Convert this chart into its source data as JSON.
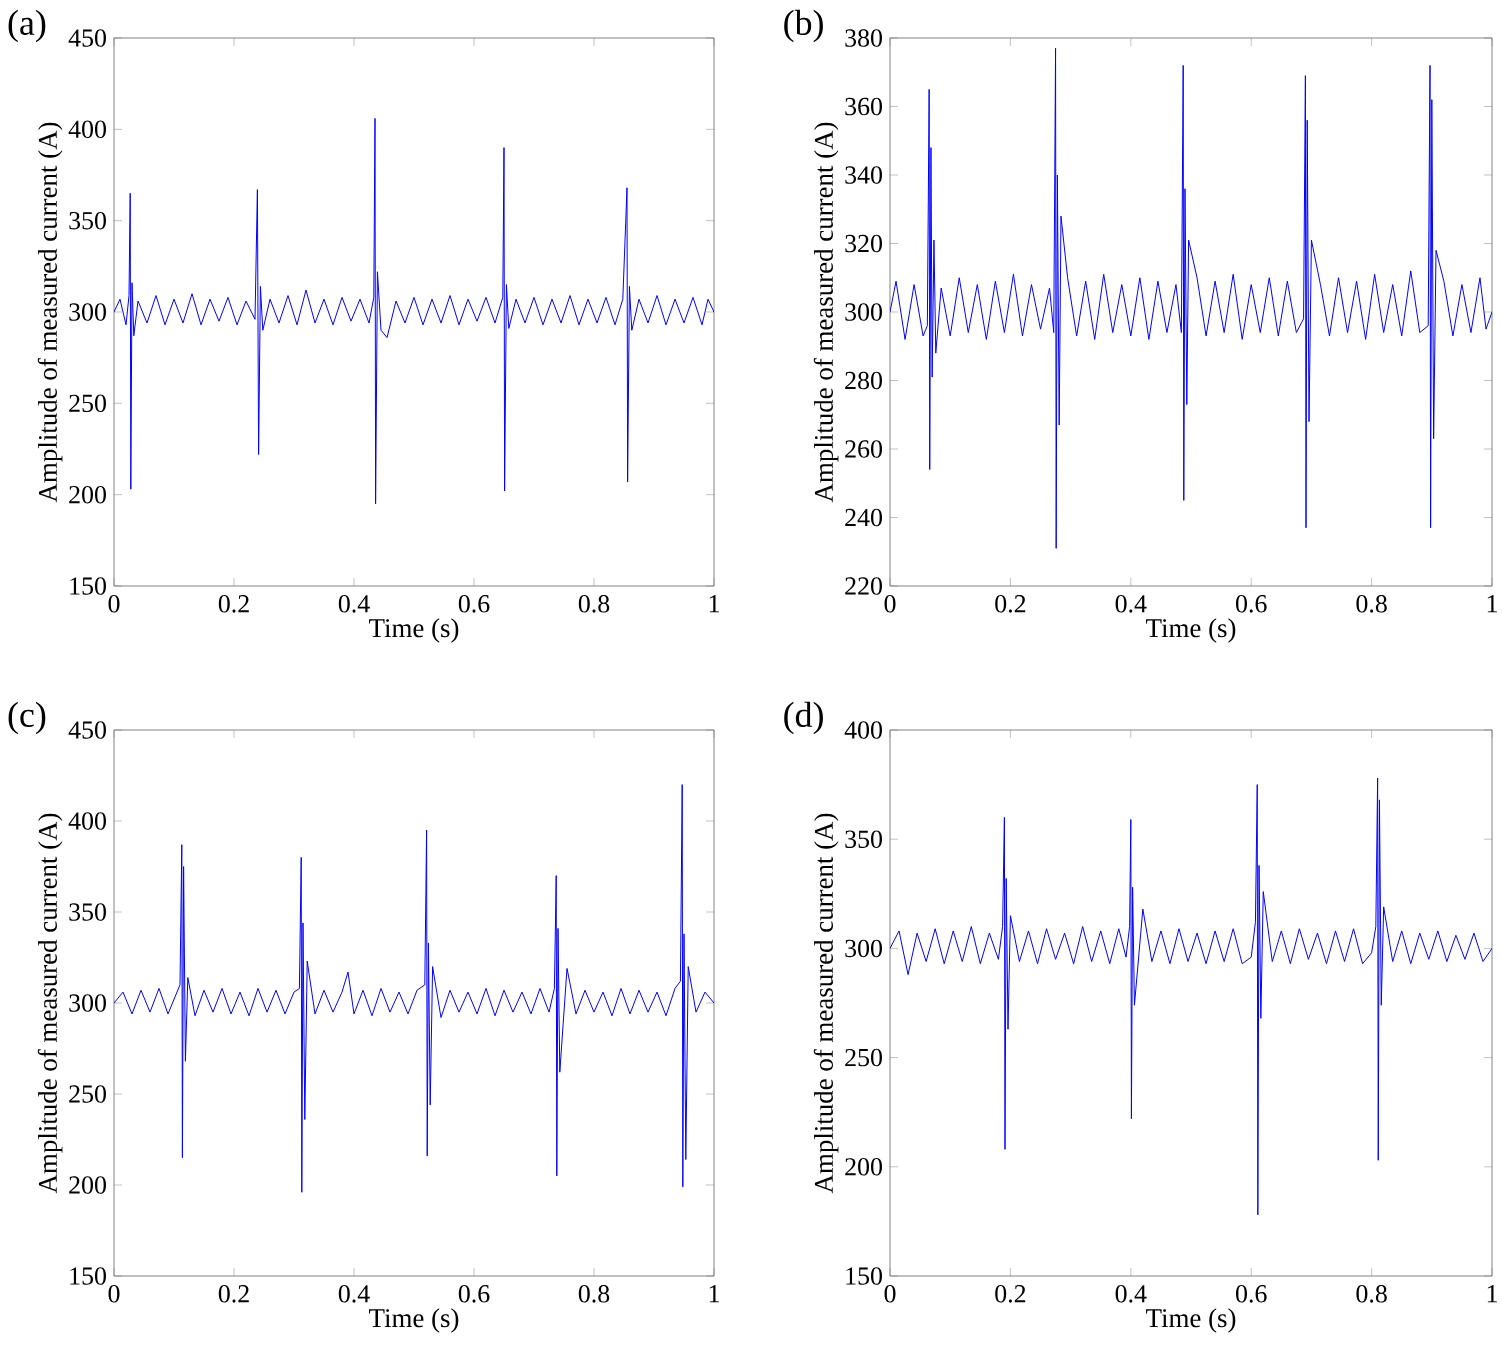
{
  "chart_data": [
    {
      "type": "line",
      "title": "(a)",
      "xlabel": "Time (s)",
      "ylabel": "Amplitude of measured current (A)",
      "marker": "none",
      "xlim": [
        0,
        1
      ],
      "ylim": [
        150,
        450
      ],
      "xticks": [
        0,
        0.2,
        0.4,
        0.6,
        0.8,
        1
      ],
      "yticks": [
        150,
        200,
        250,
        300,
        350,
        400,
        450
      ],
      "series": [
        {
          "color": "#0000ff",
          "x": [
            0,
            0.01,
            0.02,
            0.025,
            0.027,
            0.028,
            0.03,
            0.033,
            0.04,
            0.055,
            0.07,
            0.085,
            0.1,
            0.115,
            0.13,
            0.145,
            0.16,
            0.175,
            0.19,
            0.205,
            0.22,
            0.235,
            0.239,
            0.241,
            0.244,
            0.248,
            0.26,
            0.275,
            0.29,
            0.305,
            0.32,
            0.335,
            0.35,
            0.365,
            0.38,
            0.395,
            0.41,
            0.425,
            0.433,
            0.435,
            0.436,
            0.439,
            0.445,
            0.455,
            0.47,
            0.485,
            0.5,
            0.515,
            0.53,
            0.545,
            0.56,
            0.575,
            0.59,
            0.605,
            0.62,
            0.635,
            0.648,
            0.65,
            0.651,
            0.654,
            0.658,
            0.67,
            0.685,
            0.7,
            0.715,
            0.73,
            0.745,
            0.76,
            0.775,
            0.79,
            0.805,
            0.82,
            0.835,
            0.848,
            0.855,
            0.856,
            0.859,
            0.863,
            0.875,
            0.89,
            0.905,
            0.92,
            0.935,
            0.95,
            0.965,
            0.98,
            0.99,
            1.0
          ],
          "values": [
            300,
            307,
            293,
            309,
            365,
            203,
            316,
            287,
            306,
            294,
            309,
            293,
            307,
            294,
            310,
            293,
            307,
            295,
            308,
            293,
            306,
            296,
            367,
            222,
            314,
            290,
            307,
            294,
            309,
            293,
            312,
            294,
            307,
            293,
            308,
            295,
            307,
            294,
            308,
            406,
            195,
            322,
            290,
            286,
            306,
            294,
            308,
            293,
            307,
            294,
            309,
            293,
            307,
            295,
            308,
            294,
            308,
            390,
            202,
            315,
            291,
            307,
            294,
            308,
            293,
            307,
            294,
            309,
            293,
            307,
            294,
            308,
            293,
            307,
            368,
            207,
            314,
            290,
            307,
            294,
            309,
            293,
            307,
            294,
            308,
            293,
            307,
            300
          ]
        }
      ]
    },
    {
      "type": "line",
      "title": "(b)",
      "xlabel": "Time (s)",
      "ylabel": "Amplitude of measured current (A)",
      "marker": "none",
      "xlim": [
        0,
        1
      ],
      "ylim": [
        220,
        380
      ],
      "xticks": [
        0,
        0.2,
        0.4,
        0.6,
        0.8,
        1
      ],
      "yticks": [
        220,
        240,
        260,
        280,
        300,
        320,
        340,
        360,
        380
      ],
      "series": [
        {
          "color": "#0000ff",
          "x": [
            0,
            0.01,
            0.025,
            0.04,
            0.055,
            0.062,
            0.065,
            0.066,
            0.068,
            0.07,
            0.073,
            0.076,
            0.085,
            0.1,
            0.115,
            0.13,
            0.145,
            0.16,
            0.175,
            0.19,
            0.205,
            0.22,
            0.235,
            0.25,
            0.265,
            0.272,
            0.275,
            0.276,
            0.278,
            0.281,
            0.284,
            0.295,
            0.31,
            0.325,
            0.34,
            0.355,
            0.37,
            0.385,
            0.4,
            0.415,
            0.43,
            0.445,
            0.46,
            0.475,
            0.484,
            0.487,
            0.488,
            0.49,
            0.493,
            0.496,
            0.51,
            0.525,
            0.54,
            0.555,
            0.57,
            0.585,
            0.6,
            0.615,
            0.63,
            0.645,
            0.66,
            0.675,
            0.687,
            0.69,
            0.691,
            0.693,
            0.696,
            0.7,
            0.715,
            0.73,
            0.745,
            0.76,
            0.775,
            0.79,
            0.805,
            0.82,
            0.835,
            0.85,
            0.865,
            0.88,
            0.894,
            0.897,
            0.898,
            0.9,
            0.903,
            0.907,
            0.92,
            0.935,
            0.95,
            0.965,
            0.98,
            0.99,
            1.0
          ],
          "values": [
            300,
            309,
            292,
            308,
            293,
            296,
            365,
            254,
            348,
            281,
            321,
            288,
            307,
            293,
            310,
            294,
            308,
            292,
            309,
            294,
            311,
            293,
            308,
            295,
            307,
            294,
            377,
            231,
            340,
            267,
            328,
            310,
            293,
            309,
            292,
            311,
            294,
            308,
            293,
            310,
            292,
            309,
            294,
            308,
            294,
            372,
            245,
            336,
            273,
            321,
            310,
            293,
            309,
            294,
            311,
            292,
            308,
            294,
            310,
            293,
            309,
            294,
            298,
            369,
            237,
            356,
            268,
            321,
            308,
            293,
            310,
            294,
            309,
            292,
            311,
            294,
            308,
            293,
            312,
            294,
            296,
            372,
            237,
            362,
            263,
            318,
            309,
            293,
            308,
            294,
            310,
            295,
            300
          ]
        }
      ]
    },
    {
      "type": "line",
      "title": "(c)",
      "xlabel": "Time (s)",
      "ylabel": "Amplitude of measured current (A)",
      "marker": "none",
      "xlim": [
        0,
        1
      ],
      "ylim": [
        150,
        450
      ],
      "xticks": [
        0,
        0.2,
        0.4,
        0.6,
        0.8,
        1
      ],
      "yticks": [
        150,
        200,
        250,
        300,
        350,
        400,
        450
      ],
      "series": [
        {
          "color": "#0000ff",
          "x": [
            0,
            0.015,
            0.03,
            0.045,
            0.06,
            0.075,
            0.09,
            0.105,
            0.11,
            0.113,
            0.114,
            0.116,
            0.119,
            0.123,
            0.135,
            0.15,
            0.165,
            0.18,
            0.195,
            0.21,
            0.225,
            0.24,
            0.255,
            0.27,
            0.285,
            0.3,
            0.309,
            0.312,
            0.313,
            0.315,
            0.318,
            0.322,
            0.335,
            0.35,
            0.365,
            0.38,
            0.39,
            0.4,
            0.415,
            0.43,
            0.445,
            0.46,
            0.475,
            0.49,
            0.505,
            0.518,
            0.521,
            0.522,
            0.524,
            0.527,
            0.531,
            0.545,
            0.56,
            0.575,
            0.59,
            0.605,
            0.62,
            0.635,
            0.65,
            0.665,
            0.68,
            0.695,
            0.71,
            0.725,
            0.734,
            0.737,
            0.738,
            0.74,
            0.743,
            0.755,
            0.77,
            0.785,
            0.8,
            0.815,
            0.83,
            0.845,
            0.86,
            0.875,
            0.89,
            0.905,
            0.92,
            0.935,
            0.944,
            0.947,
            0.948,
            0.95,
            0.953,
            0.957,
            0.97,
            0.985,
            1.0
          ],
          "values": [
            300,
            306,
            294,
            307,
            295,
            308,
            294,
            306,
            310,
            387,
            215,
            375,
            268,
            314,
            293,
            307,
            295,
            308,
            294,
            306,
            293,
            308,
            295,
            307,
            294,
            306,
            308,
            380,
            196,
            344,
            236,
            323,
            294,
            307,
            295,
            306,
            317,
            294,
            307,
            293,
            308,
            295,
            306,
            294,
            307,
            310,
            395,
            216,
            333,
            244,
            320,
            292,
            307,
            295,
            306,
            294,
            308,
            293,
            307,
            295,
            306,
            294,
            308,
            295,
            308,
            370,
            205,
            341,
            262,
            319,
            294,
            307,
            295,
            306,
            293,
            308,
            294,
            307,
            295,
            306,
            293,
            308,
            312,
            420,
            199,
            338,
            214,
            320,
            295,
            306,
            300
          ]
        }
      ]
    },
    {
      "type": "line",
      "title": "(d)",
      "xlabel": "Time (s)",
      "ylabel": "Amplitude of measured current (A)",
      "marker": "none",
      "xlim": [
        0,
        1
      ],
      "ylim": [
        150,
        400
      ],
      "xticks": [
        0,
        0.2,
        0.4,
        0.6,
        0.8,
        1
      ],
      "yticks": [
        150,
        200,
        250,
        300,
        350,
        400
      ],
      "series": [
        {
          "color": "#0000ff",
          "x": [
            0,
            0.015,
            0.03,
            0.045,
            0.06,
            0.075,
            0.09,
            0.105,
            0.12,
            0.135,
            0.15,
            0.165,
            0.18,
            0.187,
            0.19,
            0.191,
            0.193,
            0.196,
            0.2,
            0.215,
            0.23,
            0.245,
            0.26,
            0.275,
            0.29,
            0.305,
            0.32,
            0.335,
            0.35,
            0.365,
            0.38,
            0.392,
            0.398,
            0.4,
            0.401,
            0.403,
            0.406,
            0.42,
            0.435,
            0.45,
            0.465,
            0.48,
            0.495,
            0.51,
            0.525,
            0.54,
            0.555,
            0.57,
            0.585,
            0.6,
            0.607,
            0.61,
            0.611,
            0.613,
            0.616,
            0.62,
            0.635,
            0.65,
            0.665,
            0.68,
            0.695,
            0.71,
            0.725,
            0.74,
            0.755,
            0.77,
            0.785,
            0.8,
            0.807,
            0.81,
            0.811,
            0.813,
            0.816,
            0.82,
            0.835,
            0.85,
            0.865,
            0.88,
            0.895,
            0.91,
            0.925,
            0.94,
            0.955,
            0.97,
            0.985,
            1.0
          ],
          "values": [
            300,
            308,
            288,
            307,
            294,
            309,
            293,
            308,
            294,
            310,
            293,
            307,
            295,
            310,
            360,
            208,
            332,
            263,
            315,
            294,
            308,
            293,
            309,
            295,
            307,
            293,
            310,
            294,
            308,
            293,
            309,
            296,
            310,
            359,
            222,
            328,
            274,
            318,
            294,
            308,
            293,
            309,
            294,
            307,
            293,
            308,
            294,
            309,
            293,
            296,
            312,
            375,
            178,
            338,
            268,
            326,
            294,
            308,
            293,
            309,
            295,
            307,
            293,
            308,
            294,
            309,
            293,
            298,
            310,
            378,
            203,
            368,
            274,
            319,
            294,
            308,
            293,
            307,
            295,
            308,
            294,
            306,
            295,
            307,
            294,
            300
          ]
        }
      ]
    }
  ]
}
